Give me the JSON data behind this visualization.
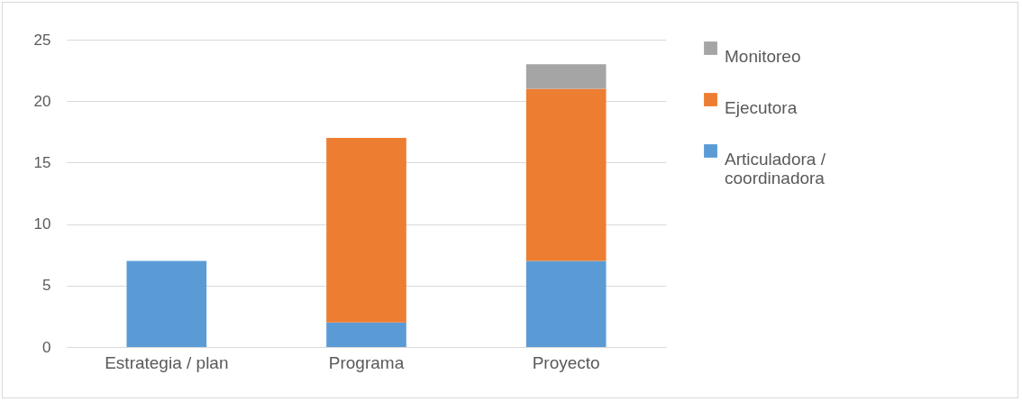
{
  "chart_data": {
    "type": "bar",
    "stacked": true,
    "categories": [
      "Estrategia / plan",
      "Programa",
      "Proyecto"
    ],
    "series": [
      {
        "name": "Articuladora / coordinadora",
        "color": "#5b9bd5",
        "values": [
          7,
          2,
          7
        ]
      },
      {
        "name": "Ejecutora",
        "color": "#ed7d31",
        "values": [
          0,
          15,
          14
        ]
      },
      {
        "name": "Monitoreo",
        "color": "#a5a5a5",
        "values": [
          0,
          0,
          2
        ]
      }
    ],
    "ylim": [
      0,
      25
    ],
    "yticks": [
      0,
      5,
      10,
      15,
      20,
      25
    ],
    "grid": "y",
    "legend": "right"
  }
}
